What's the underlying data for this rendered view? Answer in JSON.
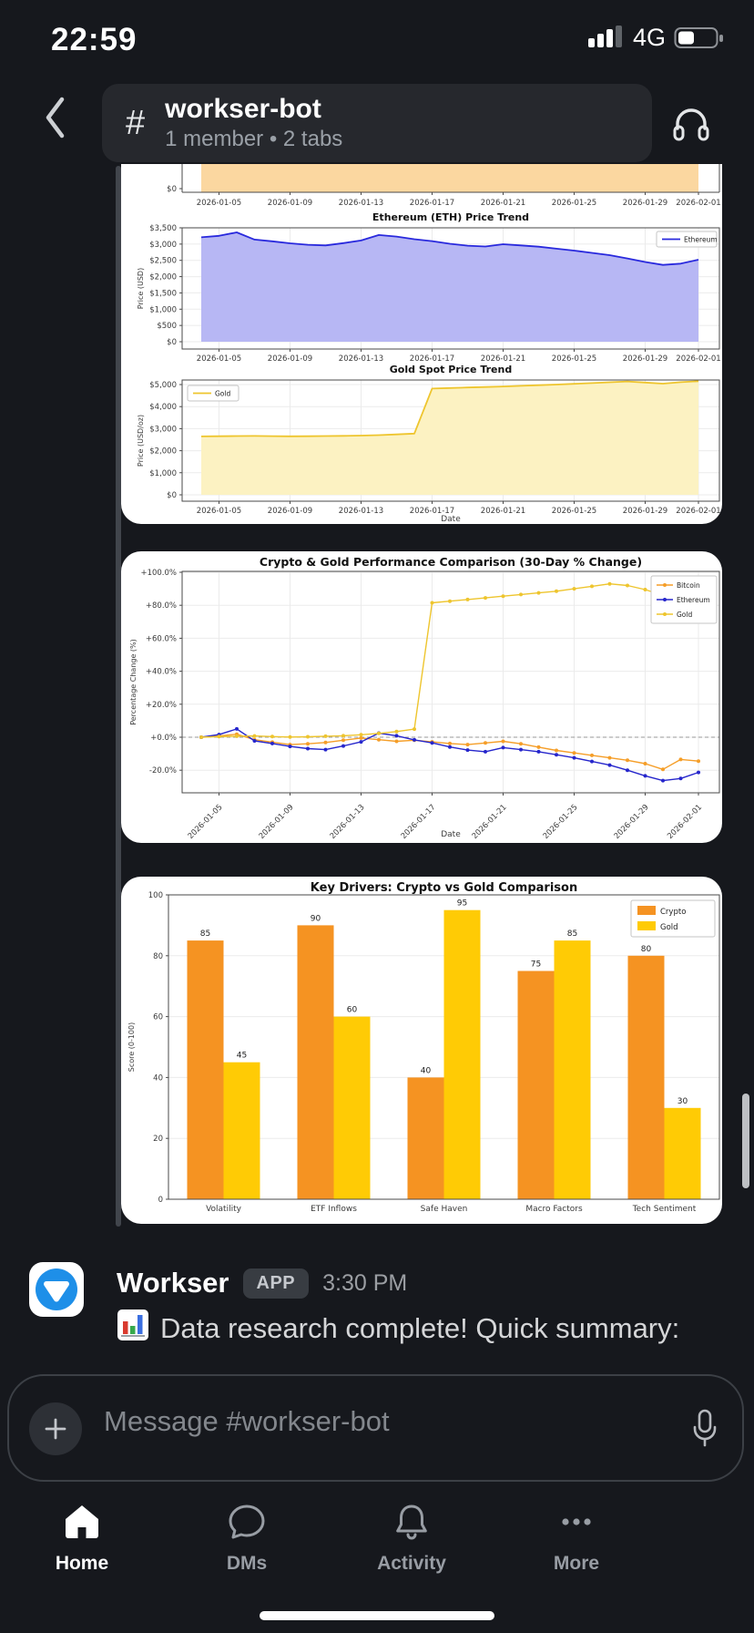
{
  "status_bar": {
    "time": "22:59",
    "network": "4G"
  },
  "header": {
    "hash": "#",
    "channel": "workser-bot",
    "subtitle": "1 member • 2 tabs"
  },
  "message": {
    "sender": "Workser",
    "badge": "APP",
    "time": "3:30 PM",
    "text": "Data research complete! Quick summary:"
  },
  "composer": {
    "placeholder": "Message #workser-bot"
  },
  "nav": {
    "items": [
      {
        "label": "Home",
        "active": true
      },
      {
        "label": "DMs",
        "active": false
      },
      {
        "label": "Activity",
        "active": false
      },
      {
        "label": "More",
        "active": false
      }
    ]
  },
  "icons": {
    "back": "chevron-left",
    "channel": "hash",
    "huddle": "headphones",
    "attach": "plus",
    "dictate": "microphone",
    "emoji": "bar-chart",
    "nav": [
      "house",
      "chat-bubble",
      "bell",
      "ellipsis"
    ],
    "status": [
      "cellular-signal",
      "battery"
    ]
  },
  "ui_colors": {
    "page_bg": "#16181d",
    "card_bg": "#ffffff",
    "avatar_blue": "#1e8fe8",
    "accent_white": "#ffffff"
  },
  "chart_data": [
    {
      "id": "bitcoin-price-partial",
      "type": "area",
      "title": "",
      "partially_visible": true,
      "series": [
        {
          "name": "Bitcoin",
          "fill_color": "#fbd7a0"
        }
      ],
      "visible_ytick_labels": [
        "$0"
      ],
      "x_ticks": [
        "2026-01-05",
        "2026-01-09",
        "2026-01-13",
        "2026-01-17",
        "2026-01-21",
        "2026-01-25",
        "2026-01-29",
        "2026-02-01"
      ]
    },
    {
      "id": "ethereum-price",
      "type": "area",
      "title": "Ethereum (ETH) Price Trend",
      "ylabel": "Price (USD)",
      "legend": [
        "Ethereum"
      ],
      "legend_position": "upper right",
      "line_color": "#2929dd",
      "fill_color": "#b7b7f4",
      "x": [
        "2026-01-04",
        "2026-01-05",
        "2026-01-06",
        "2026-01-07",
        "2026-01-08",
        "2026-01-09",
        "2026-01-10",
        "2026-01-11",
        "2026-01-12",
        "2026-01-13",
        "2026-01-14",
        "2026-01-15",
        "2026-01-16",
        "2026-01-17",
        "2026-01-18",
        "2026-01-19",
        "2026-01-20",
        "2026-01-21",
        "2026-01-22",
        "2026-01-23",
        "2026-01-24",
        "2026-01-25",
        "2026-01-26",
        "2026-01-27",
        "2026-01-28",
        "2026-01-29",
        "2026-01-30",
        "2026-01-31",
        "2026-02-01"
      ],
      "values": [
        3210,
        3255,
        3360,
        3140,
        3085,
        3025,
        2980,
        2960,
        3030,
        3110,
        3280,
        3230,
        3150,
        3090,
        3010,
        2950,
        2925,
        2995,
        2960,
        2920,
        2860,
        2800,
        2730,
        2660,
        2560,
        2450,
        2360,
        2400,
        2520
      ],
      "ytick_values": [
        0,
        500,
        1000,
        1500,
        2000,
        2500,
        3000,
        3500
      ],
      "ytick_labels": [
        "$0",
        "$500",
        "$1,000",
        "$1,500",
        "$2,000",
        "$2,500",
        "$3,000",
        "$3,500"
      ],
      "x_ticks": [
        "2026-01-05",
        "2026-01-09",
        "2026-01-13",
        "2026-01-17",
        "2026-01-21",
        "2026-01-25",
        "2026-01-29",
        "2026-02-01"
      ]
    },
    {
      "id": "gold-price",
      "type": "area",
      "title": "Gold Spot Price Trend",
      "ylabel": "Price (USD/oz)",
      "xlabel": "Date",
      "legend": [
        "Gold"
      ],
      "legend_position": "upper left",
      "line_color": "#eec52e",
      "fill_color": "#fcf2c2",
      "x": [
        "2026-01-04",
        "2026-01-05",
        "2026-01-06",
        "2026-01-07",
        "2026-01-08",
        "2026-01-09",
        "2026-01-10",
        "2026-01-11",
        "2026-01-12",
        "2026-01-13",
        "2026-01-14",
        "2026-01-15",
        "2026-01-16",
        "2026-01-17",
        "2026-01-18",
        "2026-01-19",
        "2026-01-20",
        "2026-01-21",
        "2026-01-22",
        "2026-01-23",
        "2026-01-24",
        "2026-01-25",
        "2026-01-26",
        "2026-01-27",
        "2026-01-28",
        "2026-01-29",
        "2026-01-30",
        "2026-01-31",
        "2026-02-01"
      ],
      "values": [
        2650,
        2658,
        2664,
        2670,
        2660,
        2652,
        2656,
        2664,
        2674,
        2688,
        2708,
        2738,
        2775,
        4820,
        4845,
        4868,
        4890,
        4915,
        4942,
        4970,
        5000,
        5032,
        5068,
        5105,
        5140,
        5092,
        5040,
        5108,
        5152
      ],
      "ytick_values": [
        0,
        1000,
        2000,
        3000,
        4000,
        5000
      ],
      "ytick_labels": [
        "$0",
        "$1,000",
        "$2,000",
        "$3,000",
        "$4,000",
        "$5,000"
      ],
      "x_ticks": [
        "2026-01-05",
        "2026-01-09",
        "2026-01-13",
        "2026-01-17",
        "2026-01-21",
        "2026-01-25",
        "2026-01-29",
        "2026-02-01"
      ]
    },
    {
      "id": "performance-comparison",
      "type": "line",
      "title": "Crypto & Gold Performance Comparison (30-Day % Change)",
      "ylabel": "Percentage Change (%)",
      "xlabel": "Date",
      "zero_line": "dashed",
      "legend_position": "upper right",
      "x": [
        "2026-01-04",
        "2026-01-05",
        "2026-01-06",
        "2026-01-07",
        "2026-01-08",
        "2026-01-09",
        "2026-01-10",
        "2026-01-11",
        "2026-01-12",
        "2026-01-13",
        "2026-01-14",
        "2026-01-15",
        "2026-01-16",
        "2026-01-17",
        "2026-01-18",
        "2026-01-19",
        "2026-01-20",
        "2026-01-21",
        "2026-01-22",
        "2026-01-23",
        "2026-01-24",
        "2026-01-25",
        "2026-01-26",
        "2026-01-27",
        "2026-01-28",
        "2026-01-29",
        "2026-01-30",
        "2026-01-31",
        "2026-02-01"
      ],
      "series": [
        {
          "name": "Bitcoin",
          "color": "#f59e28",
          "values": [
            0,
            0.8,
            1.8,
            -1.5,
            -3,
            -4.5,
            -4,
            -3.2,
            -1.8,
            -0.5,
            -1.5,
            -2.5,
            -1.8,
            -2.8,
            -3.8,
            -4.5,
            -3.5,
            -2.5,
            -4,
            -6,
            -8,
            -9.5,
            -11,
            -12.5,
            -14,
            -16,
            -19.5,
            -13.5,
            -14.5
          ]
        },
        {
          "name": "Ethereum",
          "color": "#2626cc",
          "values": [
            0,
            1.6,
            5,
            -2.2,
            -3.8,
            -5.6,
            -6.9,
            -7.5,
            -5.3,
            -2.8,
            2.5,
            0.9,
            -1.6,
            -3.4,
            -5.9,
            -7.8,
            -8.8,
            -6.3,
            -7.5,
            -8.8,
            -10.6,
            -12.5,
            -14.7,
            -16.9,
            -20,
            -23.4,
            -26.3,
            -25,
            -21.3
          ]
        },
        {
          "name": "Gold",
          "color": "#eec52e",
          "values": [
            0,
            0.4,
            0.6,
            0.8,
            0.4,
            0.1,
            0.3,
            0.6,
            0.9,
            1.5,
            2.3,
            3.4,
            4.9,
            81.5,
            82.5,
            83.5,
            84.5,
            85.5,
            86.5,
            87.5,
            88.5,
            90,
            91.5,
            93,
            92,
            89.5,
            86,
            89,
            90.5
          ]
        }
      ],
      "ytick_values": [
        -20,
        0,
        20,
        40,
        60,
        80,
        100
      ],
      "ytick_labels": [
        "-20.0%",
        "+0.0%",
        "+20.0%",
        "+40.0%",
        "+60.0%",
        "+80.0%",
        "+100.0%"
      ],
      "x_ticks": [
        "2026-01-05",
        "2026-01-09",
        "2026-01-13",
        "2026-01-17",
        "2026-01-21",
        "2026-01-25",
        "2026-01-29",
        "2026-02-01"
      ]
    },
    {
      "id": "key-drivers",
      "type": "bar",
      "title": "Key Drivers: Crypto vs Gold Comparison",
      "ylabel": "Score (0-100)",
      "ylim": [
        0,
        100
      ],
      "legend_position": "upper right",
      "categories": [
        "Volatility",
        "ETF Inflows",
        "Safe Haven",
        "Macro Factors",
        "Tech Sentiment"
      ],
      "series": [
        {
          "name": "Crypto",
          "color": "#f59322",
          "values": [
            85,
            90,
            40,
            75,
            80
          ]
        },
        {
          "name": "Gold",
          "color": "#ffcb05",
          "values": [
            45,
            60,
            95,
            85,
            30
          ]
        }
      ],
      "ytick_values": [
        0,
        20,
        40,
        60,
        80,
        100
      ]
    }
  ]
}
